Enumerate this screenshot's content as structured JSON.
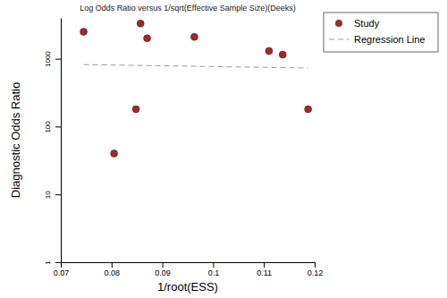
{
  "chart_data": {
    "type": "scatter",
    "title": "Log Odds Ratio versus 1/sqrt(Effective Sample Size)(Deeks)",
    "x_label": "1/root(ESS)",
    "y_label": "Diagnostic Odds Ratio",
    "log": "y",
    "grid": false,
    "legend": "right",
    "xlim": [
      0.07,
      0.12
    ],
    "xticks": [
      0.07,
      0.08,
      0.09,
      0.1,
      0.11,
      0.12
    ],
    "ylim": [
      1,
      4000
    ],
    "yticks": [
      1,
      10,
      100,
      1000
    ],
    "series": [
      {
        "name": "Study",
        "type": "scatter",
        "marker": "circle",
        "color": "#9b2a2e",
        "x": [
          0.0745,
          0.0805,
          0.0848,
          0.0857,
          0.087,
          0.0963,
          0.111,
          0.1137,
          0.1187
        ],
        "values": [
          2500,
          40,
          180,
          3300,
          2000,
          2100,
          1300,
          1150,
          180
        ]
      },
      {
        "name": "Regression Line",
        "type": "line",
        "line_style": "dashed",
        "color": "#9a9a9a",
        "x": [
          0.0745,
          0.1187
        ],
        "values": [
          820,
          730
        ]
      }
    ]
  }
}
